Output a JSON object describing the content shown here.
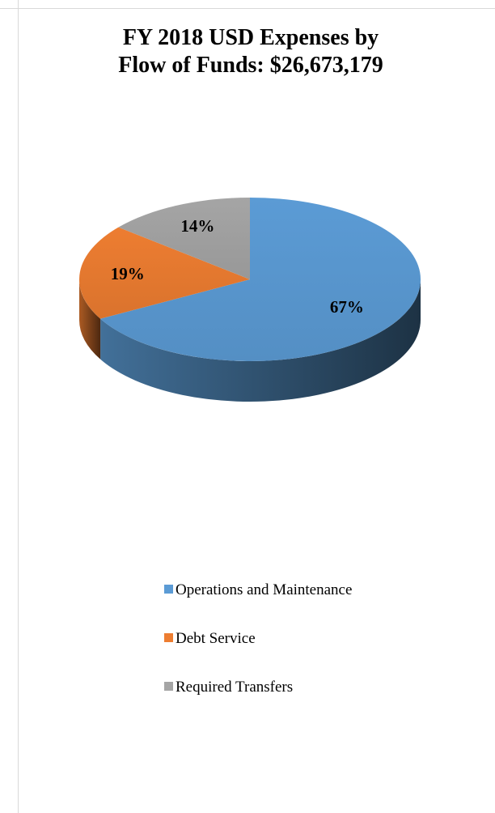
{
  "chart_data": {
    "type": "pie",
    "title_line1": "FY 2018 USD Expenses by",
    "title_line2": "Flow of Funds:  $26,673,179",
    "slices": [
      {
        "label": "Operations and Maintenance",
        "value": 67,
        "data_label": "67%",
        "color": "#5b9bd5"
      },
      {
        "label": "Debt Service",
        "value": 19,
        "data_label": "19%",
        "color": "#ed7d31"
      },
      {
        "label": "Required Transfers",
        "value": 14,
        "data_label": "14%",
        "color": "#a5a5a5"
      }
    ],
    "style": "3d",
    "legend_position": "bottom"
  }
}
